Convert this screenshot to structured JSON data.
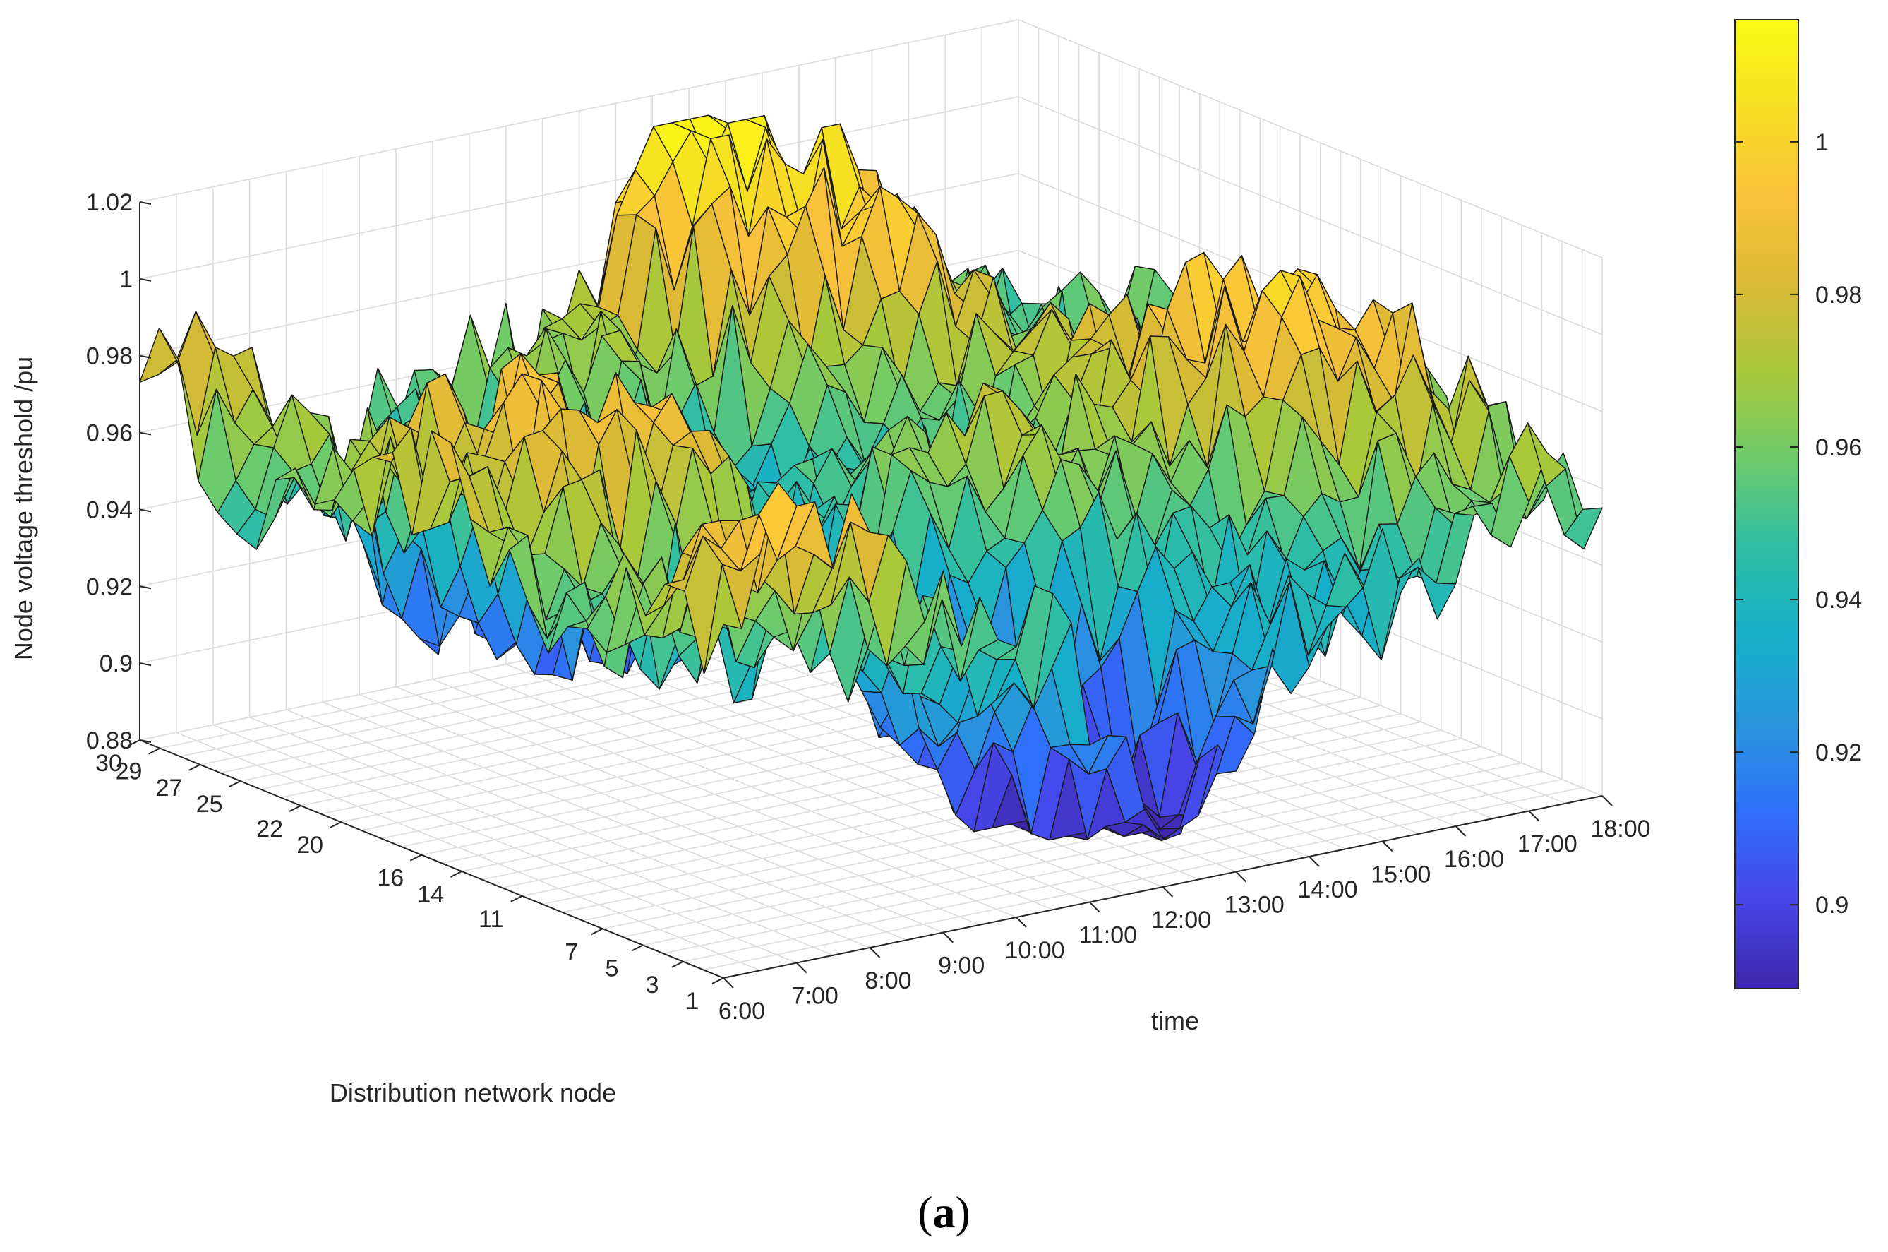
{
  "caption": {
    "open": "(",
    "letter": "a",
    "close": ")"
  },
  "chart_data": {
    "type": "surface",
    "title": "",
    "zlabel": "Node voltage threshold /pu",
    "xlabel": "time",
    "ylabel": "Distribution network node",
    "zlim": [
      0.88,
      1.02
    ],
    "z_ticks": [
      "0.88",
      "0.9",
      "0.92",
      "0.94",
      "0.96",
      "0.98",
      "1",
      "1.02"
    ],
    "time_ticks": [
      "6:00",
      "7:00",
      "8:00",
      "9:00",
      "10:00",
      "11:00",
      "12:00",
      "13:00",
      "14:00",
      "15:00",
      "16:00",
      "17:00",
      "18:00"
    ],
    "node_ticks": [
      "1",
      "3",
      "5",
      "7",
      "11",
      "14",
      "16",
      "20",
      "22",
      "25",
      "27",
      "29",
      "30"
    ],
    "node_range": [
      1,
      30
    ],
    "time_range": [
      "6:00",
      "18:00"
    ],
    "colormap": "parula",
    "colorbar": {
      "range": [
        0.889,
        1.016
      ],
      "ticks": [
        "0.9",
        "0.92",
        "0.94",
        "0.96",
        "0.98",
        "1"
      ],
      "colors": [
        "#3e26a8",
        "#4744e8",
        "#2f6ffb",
        "#2995dc",
        "#16afc9",
        "#2fbea5",
        "#6ccb6c",
        "#a9c83a",
        "#d9b935",
        "#fbc23b",
        "#f6de23",
        "#f9fb15"
      ]
    },
    "surface_summary": {
      "min_approx": 0.888,
      "max_approx": 1.015,
      "high_region": "nodes 20-30, around 12:00-16:00 (about 1.0-1.01)",
      "low_region": "nodes 1-10, around 10:00-15:00 (about 0.89-0.91)"
    }
  }
}
